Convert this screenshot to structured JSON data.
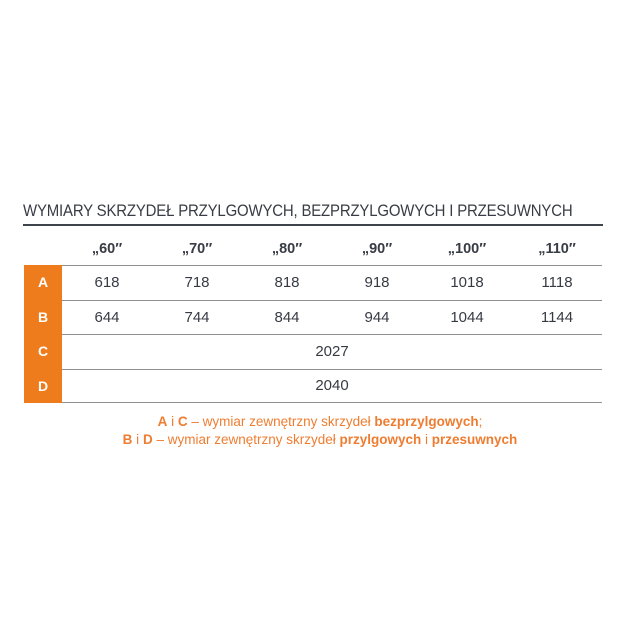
{
  "title": "WYMIARY SKRZYDEŁ PRZYLGOWYCH, BEZPRZYLGOWYCH I PRZESUWNYCH",
  "table": {
    "column_headers": [
      "„60″",
      "„70″",
      "„80″",
      "„90″",
      "„100″",
      "„110″"
    ],
    "rows": [
      {
        "label": "A",
        "values": [
          "618",
          "718",
          "818",
          "918",
          "1018",
          "1118"
        ]
      },
      {
        "label": "B",
        "values": [
          "644",
          "744",
          "844",
          "944",
          "1044",
          "1144"
        ]
      },
      {
        "label": "C",
        "span_value": "2027"
      },
      {
        "label": "D",
        "span_value": "2040"
      }
    ]
  },
  "notes": [
    {
      "segments": [
        {
          "text": "A",
          "bold": true
        },
        {
          "text": " i ",
          "bold": false
        },
        {
          "text": "C",
          "bold": true
        },
        {
          "text": " – wymiar zewnętrzny skrzydeł ",
          "bold": false
        },
        {
          "text": "bezprzylgowych",
          "bold": true
        },
        {
          "text": ";",
          "bold": false
        }
      ]
    },
    {
      "segments": [
        {
          "text": "B",
          "bold": true
        },
        {
          "text": " i ",
          "bold": false
        },
        {
          "text": "D",
          "bold": true
        },
        {
          "text": " – wymiar zewnętrzny skrzydeł ",
          "bold": false
        },
        {
          "text": "przylgowych",
          "bold": true
        },
        {
          "text": " i ",
          "bold": false
        },
        {
          "text": "przesuwnych",
          "bold": true
        }
      ]
    }
  ],
  "colors": {
    "accent_orange": "#ee7c1d",
    "note_orange": "#ee7d31",
    "text_dark": "#383c45",
    "line_gray": "#8e9092"
  }
}
